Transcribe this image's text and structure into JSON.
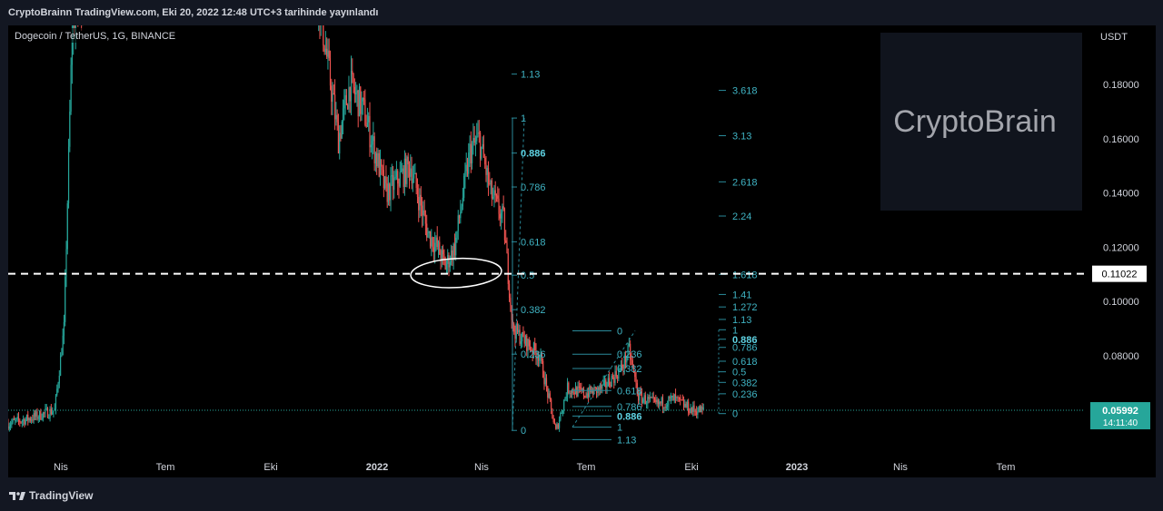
{
  "header": {
    "published_text": "CryptoBrainn TradingView.com, Eki 20, 2022 12:48 UTC+3 tarihinde yayınlandı"
  },
  "symbol_legend": "Dogecoin / TetherUS, 1G, BINANCE",
  "watermark_text": "CryptoBrain",
  "footer": {
    "brand": "TradingView"
  },
  "colors": {
    "up": "#26a69a",
    "down": "#ef5350",
    "fib": "#2a8a9a",
    "fib_label": "#3fb3c3",
    "price_badge": "#26a69a",
    "hline": "#ffffff"
  },
  "chart_data": {
    "type": "candlestick",
    "title": "Dogecoin / TetherUS, 1G, BINANCE",
    "price_axis": {
      "unit": "USDT",
      "ticks": [
        "0.18000",
        "0.16000",
        "0.14000",
        "0.12000",
        "0.10000",
        "0.08000"
      ],
      "range": [
        0.048,
        0.195
      ]
    },
    "time_axis": {
      "ticks": [
        "Nis",
        "Tem",
        "Eki",
        "2022",
        "Nis",
        "Tem",
        "Eki",
        "2023",
        "Nis",
        "Tem"
      ]
    },
    "horizontal_line": {
      "price": 0.11022,
      "label": "0.11022",
      "style": "dashed"
    },
    "last_price": {
      "price": 0.05992,
      "label": "0.05992",
      "countdown": "14:11:40"
    },
    "price_path": [
      [
        "2021-03-01",
        0.055
      ],
      [
        "2021-03-20",
        0.057
      ],
      [
        "2021-04-10",
        0.06
      ],
      [
        "2021-04-18",
        0.09
      ],
      [
        "2021-04-25",
        0.2
      ],
      [
        "2021-06-01",
        0.25
      ],
      [
        "2021-09-15",
        0.22
      ],
      [
        "2021-11-20",
        0.22
      ],
      [
        "2021-12-10",
        0.16
      ],
      [
        "2021-12-20",
        0.18
      ],
      [
        "2022-01-01",
        0.17
      ],
      [
        "2022-01-20",
        0.14
      ],
      [
        "2022-02-10",
        0.15
      ],
      [
        "2022-02-25",
        0.125
      ],
      [
        "2022-03-05",
        0.12
      ],
      [
        "2022-03-12",
        0.113
      ],
      [
        "2022-03-20",
        0.12
      ],
      [
        "2022-04-02",
        0.155
      ],
      [
        "2022-04-10",
        0.16
      ],
      [
        "2022-04-20",
        0.14
      ],
      [
        "2022-05-01",
        0.13
      ],
      [
        "2022-05-09",
        0.09
      ],
      [
        "2022-05-20",
        0.085
      ],
      [
        "2022-06-01",
        0.08
      ],
      [
        "2022-06-15",
        0.052
      ],
      [
        "2022-06-25",
        0.068
      ],
      [
        "2022-07-10",
        0.066
      ],
      [
        "2022-07-25",
        0.068
      ],
      [
        "2022-08-10",
        0.075
      ],
      [
        "2022-08-17",
        0.082
      ],
      [
        "2022-08-25",
        0.065
      ],
      [
        "2022-09-10",
        0.062
      ],
      [
        "2022-09-25",
        0.064
      ],
      [
        "2022-10-10",
        0.06
      ],
      [
        "2022-10-20",
        0.0599
      ]
    ],
    "fib_retracement_left": {
      "levels": [
        {
          "label": "1.13",
          "price": 0.1838
        },
        {
          "label": "1",
          "price": 0.1676
        },
        {
          "label": "0.886",
          "price": 0.1547,
          "bold": true
        },
        {
          "label": "0.786",
          "price": 0.1422
        },
        {
          "label": "0.618",
          "price": 0.122
        },
        {
          "label": "0.5",
          "price": 0.1097
        },
        {
          "label": "0.382",
          "price": 0.097
        },
        {
          "label": "0.236",
          "price": 0.0806
        },
        {
          "label": "0",
          "price": 0.0525
        }
      ]
    },
    "fib_extension_right": {
      "levels": [
        {
          "label": "3.618",
          "price": 0.1778
        },
        {
          "label": "3.13",
          "price": 0.1611
        },
        {
          "label": "2.618",
          "price": 0.1441
        },
        {
          "label": "2.24",
          "price": 0.1315
        },
        {
          "label": "1.618",
          "price": 0.11
        },
        {
          "label": "1.41",
          "price": 0.1026
        },
        {
          "label": "1.272",
          "price": 0.098
        },
        {
          "label": "1.13",
          "price": 0.0934
        },
        {
          "label": "1",
          "price": 0.0896
        },
        {
          "label": "0.886",
          "price": 0.0861,
          "bold": true
        },
        {
          "label": "0.786",
          "price": 0.0831
        },
        {
          "label": "0.618",
          "price": 0.078
        },
        {
          "label": "0.5",
          "price": 0.0741
        },
        {
          "label": "0.382",
          "price": 0.0702
        },
        {
          "label": "0.236",
          "price": 0.066
        },
        {
          "label": "0",
          "price": 0.0587
        }
      ]
    },
    "fib_retracement_small": {
      "levels": [
        {
          "label": "0",
          "price": 0.0892
        },
        {
          "label": "0.236",
          "price": 0.0806
        },
        {
          "label": "0.382",
          "price": 0.0753
        },
        {
          "label": "0.618",
          "price": 0.0672
        },
        {
          "label": "0.786",
          "price": 0.0613
        },
        {
          "label": "0.886",
          "price": 0.0578,
          "bold": true
        },
        {
          "label": "1",
          "price": 0.0537
        },
        {
          "label": "1.13",
          "price": 0.0491
        }
      ]
    }
  }
}
